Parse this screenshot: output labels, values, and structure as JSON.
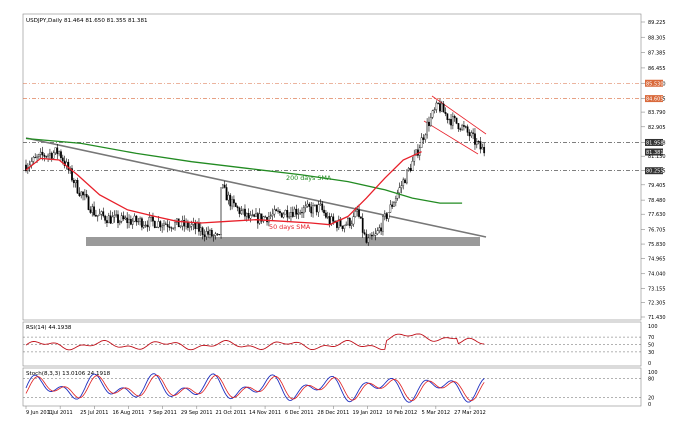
{
  "chart_data": [
    {
      "type": "candlestick",
      "title": "USDJPY,Daily  81.464 81.650 81.355 81.381",
      "y_ticks": [
        "89.225",
        "88.305",
        "87.385",
        "86.455",
        "85.530",
        "84.605",
        "83.790",
        "82.905",
        "81.958",
        "81.130",
        "80.255",
        "79.405",
        "78.480",
        "77.630",
        "76.705",
        "75.830",
        "74.965",
        "74.040",
        "73.155",
        "72.305",
        "71.430"
      ],
      "ylim": [
        71.43,
        89.225
      ],
      "x_labels": [
        "9 Jun 2011",
        "1 Jul 2011",
        "25 Jul 2011",
        "16 Aug 2011",
        "7 Sep 2011",
        "29 Sep 2011",
        "21 Oct 2011",
        "14 Nov 2011",
        "6 Dec 2011",
        "28 Dec 2011",
        "19 Jan 2012",
        "10 Feb 2012",
        "5 Mar 2012",
        "27 Mar 2012"
      ],
      "price_tags": [
        {
          "value": 85.53,
          "label": "85.530",
          "color": "#d96a3c"
        },
        {
          "value": 84.605,
          "label": "84.605",
          "color": "#d96a3c"
        },
        {
          "value": 81.958,
          "label": "81.958",
          "color": "#333333"
        },
        {
          "value": 81.381,
          "label": "81.381",
          "color": "#333333"
        },
        {
          "value": 80.255,
          "label": "80.255",
          "color": "#333333"
        }
      ],
      "annotations": [
        "200 days SMA",
        "50 days SMA"
      ],
      "series": [
        {
          "name": "200 days SMA",
          "color": "#228b22",
          "points": [
            [
              0,
              82.2
            ],
            [
              30,
              81.9
            ],
            [
              60,
              81.3
            ],
            [
              90,
              80.8
            ],
            [
              120,
              80.4
            ],
            [
              150,
              80.0
            ],
            [
              175,
              79.6
            ],
            [
              195,
              79.1
            ],
            [
              210,
              78.6
            ],
            [
              225,
              78.3
            ],
            [
              237,
              78.3
            ]
          ]
        },
        {
          "name": "50 days SMA",
          "color": "#e8202a",
          "points": [
            [
              0,
              80.3
            ],
            [
              8,
              81.0
            ],
            [
              18,
              80.9
            ],
            [
              28,
              80.0
            ],
            [
              40,
              78.8
            ],
            [
              55,
              77.9
            ],
            [
              70,
              77.5
            ],
            [
              82,
              77.2
            ],
            [
              95,
              77.1
            ],
            [
              110,
              77.2
            ],
            [
              125,
              77.3
            ],
            [
              140,
              77.2
            ],
            [
              155,
              77.1
            ],
            [
              165,
              77.0
            ],
            [
              175,
              77.5
            ],
            [
              185,
              78.6
            ],
            [
              195,
              79.8
            ],
            [
              205,
              80.9
            ],
            [
              215,
              81.4
            ]
          ]
        }
      ],
      "levels": [
        85.53,
        84.605,
        81.958,
        80.255
      ]
    },
    {
      "type": "line",
      "title": "RSI(14) 44.1938",
      "y_ticks": [
        "100",
        "70",
        "50",
        "30",
        "0"
      ],
      "ylim": [
        0,
        100
      ]
    },
    {
      "type": "line",
      "title": "Stoch(8,3,3) 13.0106 24.1918",
      "y_ticks": [
        "100",
        "80",
        "20",
        "0"
      ],
      "ylim": [
        0,
        100
      ]
    }
  ]
}
